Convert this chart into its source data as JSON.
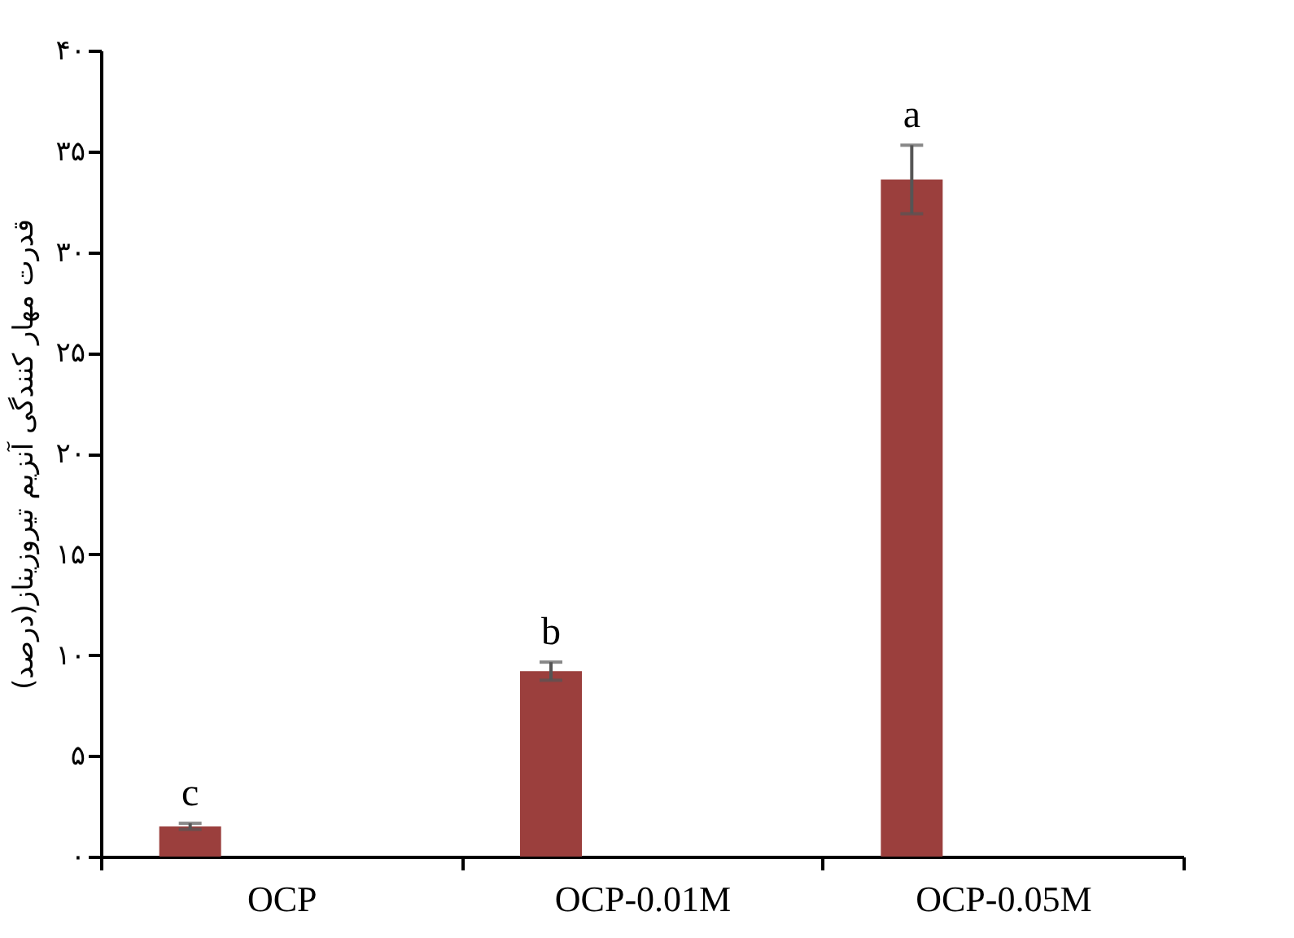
{
  "chart_data": {
    "type": "bar",
    "ylabel": "قدرت مهار کنندگی آنزیم تیروزیناز(درصد)",
    "categories": [
      "OCP",
      "OCP-0.01M",
      "OCP-0.05M"
    ],
    "values": [
      1.5,
      9.2,
      33.6
    ],
    "errors": [
      0.15,
      0.45,
      1.7
    ],
    "color": "#9b3f3d",
    "ylim": [
      0,
      40
    ],
    "yticks": [
      {
        "value": 0,
        "label": "۰"
      },
      {
        "value": 5,
        "label": "۵"
      },
      {
        "value": 10,
        "label": "۱۰"
      },
      {
        "value": 15,
        "label": "۱۵"
      },
      {
        "value": 20,
        "label": "۲۰"
      },
      {
        "value": 25,
        "label": "۲۵"
      },
      {
        "value": 30,
        "label": "۳۰"
      },
      {
        "value": 35,
        "label": "۳۵"
      },
      {
        "value": 40,
        "label": "۴۰"
      }
    ],
    "annotations": [
      "c",
      "b",
      "a"
    ],
    "grid": false
  }
}
